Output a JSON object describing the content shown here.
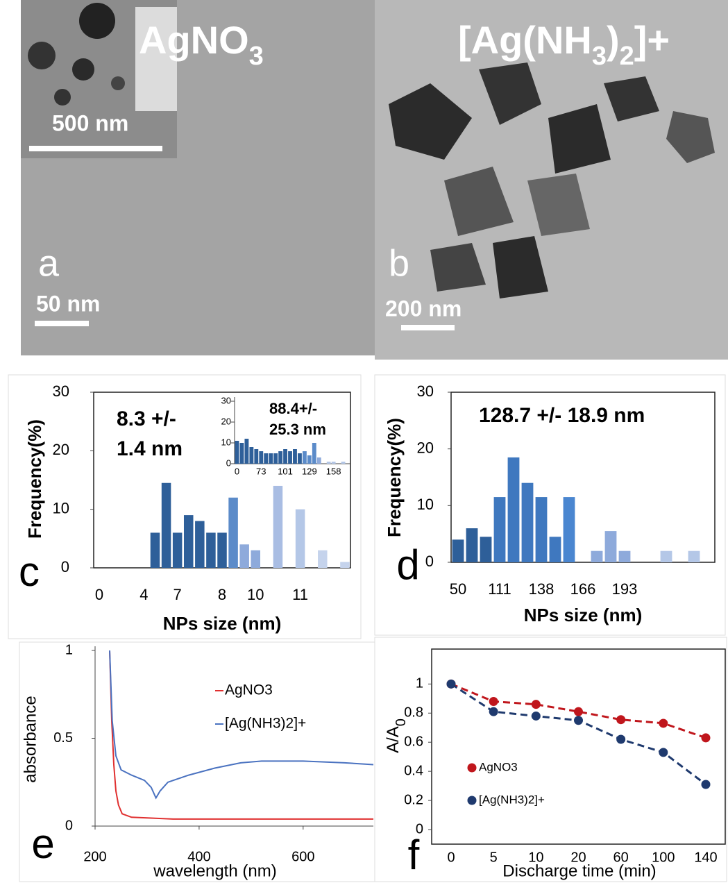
{
  "images": [
    {
      "label": "a",
      "title": [
        "AgNO",
        "3"
      ],
      "scale_bar": "50 nm",
      "inset_scale_bar": "500 nm"
    },
    {
      "label": "b",
      "title": [
        "[Ag(NH",
        "3",
        ")",
        "2",
        "]+"
      ],
      "scale_bar": "200 nm"
    }
  ],
  "chart_data": [
    {
      "type": "bar",
      "label": "c",
      "annotation": [
        "8.3 +/-",
        "1.4 nm"
      ],
      "xlabel": "NPs size (nm)",
      "ylabel": "Frequency(%)",
      "categories": [
        "0",
        null,
        null,
        null,
        "4",
        null,
        null,
        "7",
        null,
        null,
        null,
        "8",
        null,
        null,
        "10",
        null,
        null,
        null,
        "11",
        null,
        null,
        null,
        null
      ],
      "values": [
        0,
        0,
        0,
        0,
        0,
        6,
        14.5,
        6,
        9,
        8,
        6,
        6,
        12,
        4,
        3,
        0,
        14,
        0,
        10,
        0,
        3,
        0,
        1
      ],
      "colors": [
        "#2e5f99",
        "#2e5f99",
        "#2e5f99",
        "#2e5f99",
        "#2e5f99",
        "#2e5f99",
        "#2e5f99",
        "#2e5f99",
        "#2e5f99",
        "#2e5f99",
        "#2e5f99",
        "#2e5f99",
        "#5b8bc9",
        "#8eaadb",
        "#8eaadb",
        "#a9bde3",
        "#a9bde3",
        "#b4c7e7",
        "#b4c7e7",
        "#c5d3ec",
        "#c5d3ec",
        "#c5d3ec",
        "#c5d3ec"
      ],
      "ylim": [
        0,
        30
      ],
      "yticks": [
        0,
        10,
        20,
        30
      ],
      "inset": {
        "type": "bar",
        "annotation": [
          "88.4+/-",
          "25.3 nm"
        ],
        "categories": [
          "0",
          null,
          null,
          null,
          null,
          "73",
          null,
          null,
          null,
          null,
          "101",
          null,
          null,
          null,
          null,
          "129",
          null,
          null,
          null,
          null,
          "158",
          null,
          null,
          null
        ],
        "values": [
          11,
          10,
          12,
          8,
          7,
          6,
          5,
          5,
          5,
          6,
          7,
          6,
          7,
          5,
          6,
          4,
          10,
          3,
          0,
          1,
          1,
          0,
          1,
          0
        ],
        "colors": [
          "#2e5f99",
          "#2e5f99",
          "#2e5f99",
          "#2e5f99",
          "#2e5f99",
          "#2e5f99",
          "#2e5f99",
          "#2e5f99",
          "#2e5f99",
          "#2e5f99",
          "#2e5f99",
          "#2e5f99",
          "#2e5f99",
          "#2e5f99",
          "#5b8bc9",
          "#5b8bc9",
          "#5b8bc9",
          "#8eaadb",
          "#8eaadb",
          "#b4c7e7",
          "#b4c7e7",
          "#b4c7e7",
          "#b4c7e7",
          "#b4c7e7"
        ],
        "ylim": [
          0,
          30
        ],
        "yticks": [
          0,
          10,
          20,
          30
        ]
      }
    },
    {
      "type": "bar",
      "label": "d",
      "annotation": [
        "128.7 +/- 18.9 nm"
      ],
      "xlabel": "NPs size (nm)",
      "ylabel": "Frequency(%)",
      "categories": [
        "50",
        null,
        null,
        "111",
        null,
        null,
        "138",
        null,
        null,
        "166",
        null,
        null,
        "193",
        null,
        null,
        null,
        null,
        null,
        null
      ],
      "values": [
        4,
        6,
        4.5,
        11.5,
        18.5,
        14,
        11.5,
        4.5,
        11.5,
        0,
        2,
        5.5,
        2,
        0,
        0,
        2,
        0,
        2,
        0
      ],
      "colors": [
        "#2e5f99",
        "#2e5f99",
        "#2e5f99",
        "#3f78bf",
        "#3f78bf",
        "#3f78bf",
        "#3f78bf",
        "#3f78bf",
        "#4a86d0",
        "#8eaadb",
        "#8eaadb",
        "#8eaadb",
        "#8eaadb",
        "#b4c7e7",
        "#b4c7e7",
        "#b4c7e7",
        "#b4c7e7",
        "#b4c7e7",
        "#b4c7e7"
      ],
      "ylim": [
        0,
        30
      ],
      "yticks": [
        0,
        10,
        20,
        30
      ]
    },
    {
      "type": "line",
      "label": "e",
      "xlabel": "wavelength (nm)",
      "ylabel": "absorbance",
      "xlim": [
        200,
        735
      ],
      "xticks": [
        200,
        400,
        600
      ],
      "ylim": [
        0,
        1
      ],
      "yticks": [
        0,
        0.5,
        1
      ],
      "legend": "upper right",
      "series": [
        {
          "name": "AgNO3",
          "color": "#e03030",
          "x": [
            228,
            232,
            236,
            240,
            245,
            252,
            270,
            350,
            735
          ],
          "values": [
            1,
            0.6,
            0.35,
            0.2,
            0.12,
            0.07,
            0.05,
            0.04,
            0.04
          ]
        },
        {
          "name": "[Ag(NH3)2]+",
          "color": "#4a72c0",
          "x": [
            228,
            233,
            240,
            250,
            270,
            295,
            308,
            317,
            325,
            340,
            380,
            430,
            480,
            520,
            600,
            680,
            735
          ],
          "values": [
            1,
            0.6,
            0.4,
            0.32,
            0.29,
            0.26,
            0.22,
            0.16,
            0.2,
            0.25,
            0.29,
            0.33,
            0.36,
            0.37,
            0.37,
            0.36,
            0.35
          ]
        }
      ]
    },
    {
      "type": "line",
      "label": "f",
      "xlabel": "Discharge time (min)",
      "ylabel": [
        "A/A",
        "0"
      ],
      "categories": [
        "0",
        "5",
        "10",
        "20",
        "60",
        "100",
        "140"
      ],
      "ylim": [
        -0.1,
        1.24
      ],
      "yticks": [
        0,
        0.2,
        0.4,
        0.6,
        0.8,
        1
      ],
      "legend": "lower left",
      "series": [
        {
          "name": "AgNO3",
          "color": "#c0161c",
          "values": [
            1,
            0.88,
            0.86,
            0.81,
            0.755,
            0.73,
            0.63
          ]
        },
        {
          "name": "[Ag(NH3)2]+",
          "color": "#1f3a6e",
          "values": [
            1,
            0.81,
            0.78,
            0.75,
            0.62,
            0.53,
            0.31
          ]
        }
      ]
    }
  ]
}
